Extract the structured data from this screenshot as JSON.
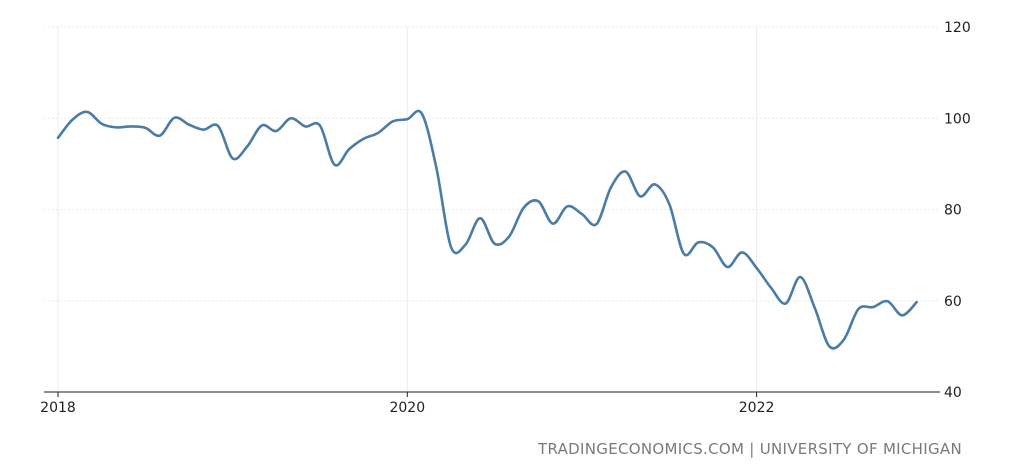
{
  "source_credit": "TRADINGECONOMICS.COM | UNIVERSITY OF MICHIGAN",
  "chart_data": {
    "type": "line",
    "title": "",
    "xlabel": "",
    "ylabel": "",
    "xlim": [
      2018.0,
      2022.97
    ],
    "ylim": [
      40,
      120
    ],
    "x_ticks": [
      {
        "value": 2018,
        "label": "2018"
      },
      {
        "value": 2020,
        "label": "2020"
      },
      {
        "value": 2022,
        "label": "2022"
      }
    ],
    "y_ticks": [
      {
        "value": 40,
        "label": "40"
      },
      {
        "value": 60,
        "label": "60"
      },
      {
        "value": 80,
        "label": "80"
      },
      {
        "value": 100,
        "label": "100"
      },
      {
        "value": 120,
        "label": "120"
      }
    ],
    "grid": true,
    "legend": "none",
    "line_color": "#4a7ca8",
    "grid_color": "#ececec",
    "axis_color": "#222222",
    "series": [
      {
        "x": [
          "2018-01",
          "2018-02",
          "2018-03",
          "2018-04",
          "2018-05",
          "2018-06",
          "2018-07",
          "2018-08",
          "2018-09",
          "2018-10",
          "2018-11",
          "2018-12",
          "2019-01",
          "2019-02",
          "2019-03",
          "2019-04",
          "2019-05",
          "2019-06",
          "2019-07",
          "2019-08",
          "2019-09",
          "2019-10",
          "2019-11",
          "2019-12",
          "2020-01",
          "2020-02",
          "2020-03",
          "2020-04",
          "2020-05",
          "2020-06",
          "2020-07",
          "2020-08",
          "2020-09",
          "2020-10",
          "2020-11",
          "2020-12",
          "2021-01",
          "2021-02",
          "2021-03",
          "2021-04",
          "2021-05",
          "2021-06",
          "2021-07",
          "2021-08",
          "2021-09",
          "2021-10",
          "2021-11",
          "2021-12",
          "2022-01",
          "2022-02",
          "2022-03",
          "2022-04",
          "2022-05",
          "2022-06",
          "2022-07",
          "2022-08",
          "2022-09",
          "2022-10",
          "2022-11",
          "2022-12"
        ],
        "values": [
          95.7,
          99.7,
          101.4,
          98.8,
          98.0,
          98.2,
          97.9,
          96.2,
          100.1,
          98.6,
          97.5,
          98.3,
          91.2,
          93.8,
          98.4,
          97.2,
          100.0,
          98.2,
          98.4,
          89.8,
          93.2,
          95.5,
          96.8,
          99.3,
          99.8,
          101.0,
          89.1,
          71.8,
          72.3,
          78.1,
          72.5,
          74.1,
          80.4,
          81.8,
          76.9,
          80.7,
          79.0,
          76.8,
          84.9,
          88.3,
          82.9,
          85.5,
          81.2,
          70.3,
          72.8,
          71.7,
          67.4,
          70.6,
          67.2,
          62.8,
          59.4,
          65.2,
          58.4,
          50.0,
          51.5,
          58.2,
          58.6,
          59.9,
          56.8,
          59.7
        ]
      }
    ]
  }
}
